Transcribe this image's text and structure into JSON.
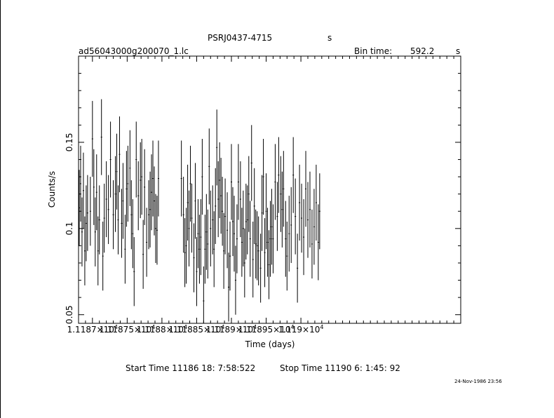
{
  "header": {
    "object": "PSRJ0437-4715",
    "object_unit": "s",
    "filename": "ad56043000g200070_1.lc",
    "bin_label": "Bin time:",
    "bin_value": "592.2",
    "bin_unit": "s"
  },
  "footer": {
    "start_time": "Start Time 11186 18: 7:58:522",
    "stop_time": "Stop Time 11190  6: 1:45: 92",
    "date_stamp": "24-Nov-1986 23:56"
  },
  "chart_data": {
    "type": "scatter",
    "title": "PSRJ0437-4715",
    "xlabel": "Time (days)",
    "ylabel": "Counts/s",
    "xlim": [
      11186.8,
      11192.3
    ],
    "ylim": [
      0.045,
      0.2
    ],
    "x_ticks": [
      11187,
      11187.5,
      11188,
      11188.5,
      11189,
      11189.5,
      11190
    ],
    "x_tick_labels": [
      {
        "mantissa": "1.1187×10",
        "exp": "4"
      },
      {
        "mantissa": "1.11875×10",
        "exp": "4"
      },
      {
        "mantissa": "1.1188×10",
        "exp": "4"
      },
      {
        "mantissa": "1.11885×10",
        "exp": "4"
      },
      {
        "mantissa": "1.1189×10",
        "exp": "4"
      },
      {
        "mantissa": "1.11895×10",
        "exp": "4"
      },
      {
        "mantissa": "1.119×10",
        "exp": "4"
      }
    ],
    "y_ticks": [
      0.05,
      0.1,
      0.15
    ],
    "y_tick_labels": [
      "0.05",
      "0.1",
      "0.15"
    ],
    "grid": false,
    "series": [
      {
        "x": [
          11186.81,
          11186.83,
          11186.85,
          11186.87,
          11186.89,
          11186.91,
          11186.93,
          11186.97,
          11187.0,
          11187.02,
          11187.04,
          11187.06,
          11187.08,
          11187.1,
          11187.13,
          11187.15,
          11187.17,
          11187.2,
          11187.23,
          11187.26,
          11187.3,
          11187.33,
          11187.35,
          11187.37,
          11187.39,
          11187.42,
          11187.44,
          11187.47,
          11187.49,
          11187.51,
          11187.54,
          11187.56,
          11187.58,
          11187.6,
          11187.63,
          11187.66,
          11187.69,
          11187.71,
          11187.73,
          11187.75,
          11187.78,
          11187.81,
          11187.83,
          11187.85,
          11187.87,
          11187.89,
          11187.91,
          11187.93,
          11187.95,
          11188.28,
          11188.31,
          11188.33,
          11188.35,
          11188.37,
          11188.39,
          11188.41,
          11188.43,
          11188.46,
          11188.48,
          11188.5,
          11188.52,
          11188.54,
          11188.56,
          11188.58,
          11188.6,
          11188.62,
          11188.64,
          11188.66,
          11188.68,
          11188.7,
          11188.73,
          11188.75,
          11188.77,
          11188.79,
          11188.81,
          11188.83,
          11188.85,
          11188.87,
          11188.89,
          11188.91,
          11188.94,
          11188.96,
          11188.98,
          11189.0,
          11189.02,
          11189.04,
          11189.06,
          11189.08,
          11189.1,
          11189.13,
          11189.15,
          11189.17,
          11189.19,
          11189.21,
          11189.23,
          11189.25,
          11189.27,
          11189.29,
          11189.31,
          11189.33,
          11189.35,
          11189.37,
          11189.39,
          11189.42,
          11189.44,
          11189.46,
          11189.48,
          11189.5,
          11189.52,
          11189.54,
          11189.56,
          11189.58,
          11189.6,
          11189.63,
          11189.66,
          11189.68,
          11189.71,
          11189.73,
          11189.75,
          11189.78,
          11189.8,
          11189.83,
          11189.86,
          11189.89,
          11189.92,
          11189.95,
          11189.98,
          11190.01,
          11190.04,
          11190.07,
          11190.1,
          11190.13,
          11190.16,
          11190.19,
          11190.22,
          11190.25,
          11190.27
        ],
        "y": [
          0.112,
          0.126,
          0.098,
          0.122,
          0.087,
          0.103,
          0.109,
          0.11,
          0.152,
          0.124,
          0.098,
          0.121,
          0.087,
          0.105,
          0.153,
          0.084,
          0.106,
          0.117,
          0.111,
          0.14,
          0.108,
          0.12,
          0.133,
          0.105,
          0.143,
          0.103,
          0.116,
          0.088,
          0.123,
          0.126,
          0.135,
          0.108,
          0.097,
          0.075,
          0.14,
          0.119,
          0.128,
          0.13,
          0.085,
          0.124,
          0.092,
          0.108,
          0.111,
          0.121,
          0.129,
          0.116,
          0.1,
          0.099,
          0.129,
          0.129,
          0.108,
          0.086,
          0.09,
          0.115,
          0.1,
          0.126,
          0.106,
          0.083,
          0.116,
          0.075,
          0.097,
          0.088,
          0.095,
          0.13,
          0.058,
          0.088,
          0.098,
          0.091,
          0.136,
          0.1,
          0.105,
          0.088,
          0.113,
          0.147,
          0.117,
          0.128,
          0.119,
          0.11,
          0.087,
          0.107,
          0.099,
          0.066,
          0.084,
          0.127,
          0.104,
          0.097,
          0.07,
          0.094,
          0.127,
          0.117,
          0.092,
          0.1,
          0.08,
          0.104,
          0.105,
          0.12,
          0.094,
          0.138,
          0.082,
          0.113,
          0.091,
          0.09,
          0.087,
          0.077,
          0.109,
          0.13,
          0.086,
          0.11,
          0.092,
          0.079,
          0.094,
          0.101,
          0.094,
          0.127,
          0.107,
          0.131,
          0.12,
          0.111,
          0.123,
          0.094,
          0.084,
          0.097,
          0.102,
          0.131,
          0.107,
          0.077,
          0.115,
          0.106,
          0.095,
          0.123,
          0.105,
          0.111,
          0.091,
          0.101,
          0.115,
          0.092,
          0.11
        ],
        "yerr": [
          0.022,
          0.022,
          0.02,
          0.022,
          0.02,
          0.022,
          0.022,
          0.02,
          0.022,
          0.022,
          0.02,
          0.022,
          0.02,
          0.02,
          0.022,
          0.02,
          0.02,
          0.022,
          0.02,
          0.022,
          0.02,
          0.022,
          0.022,
          0.02,
          0.022,
          0.02,
          0.022,
          0.02,
          0.022,
          0.022,
          0.022,
          0.02,
          0.02,
          0.02,
          0.022,
          0.02,
          0.022,
          0.022,
          0.02,
          0.022,
          0.02,
          0.02,
          0.022,
          0.022,
          0.022,
          0.02,
          0.02,
          0.02,
          0.022,
          0.022,
          0.022,
          0.02,
          0.022,
          0.022,
          0.022,
          0.022,
          0.02,
          0.02,
          0.022,
          0.02,
          0.02,
          0.02,
          0.022,
          0.022,
          0.02,
          0.02,
          0.022,
          0.02,
          0.022,
          0.022,
          0.02,
          0.022,
          0.022,
          0.022,
          0.022,
          0.022,
          0.022,
          0.02,
          0.022,
          0.022,
          0.022,
          0.02,
          0.02,
          0.022,
          0.02,
          0.022,
          0.02,
          0.02,
          0.022,
          0.022,
          0.02,
          0.022,
          0.02,
          0.022,
          0.02,
          0.022,
          0.022,
          0.022,
          0.022,
          0.022,
          0.02,
          0.02,
          0.02,
          0.02,
          0.022,
          0.022,
          0.02,
          0.022,
          0.02,
          0.02,
          0.022,
          0.022,
          0.02,
          0.022,
          0.02,
          0.022,
          0.022,
          0.022,
          0.022,
          0.022,
          0.02,
          0.022,
          0.022,
          0.022,
          0.022,
          0.02,
          0.022,
          0.02,
          0.022,
          0.022,
          0.022,
          0.022,
          0.02,
          0.022,
          0.022,
          0.022,
          0.022
        ]
      }
    ]
  }
}
